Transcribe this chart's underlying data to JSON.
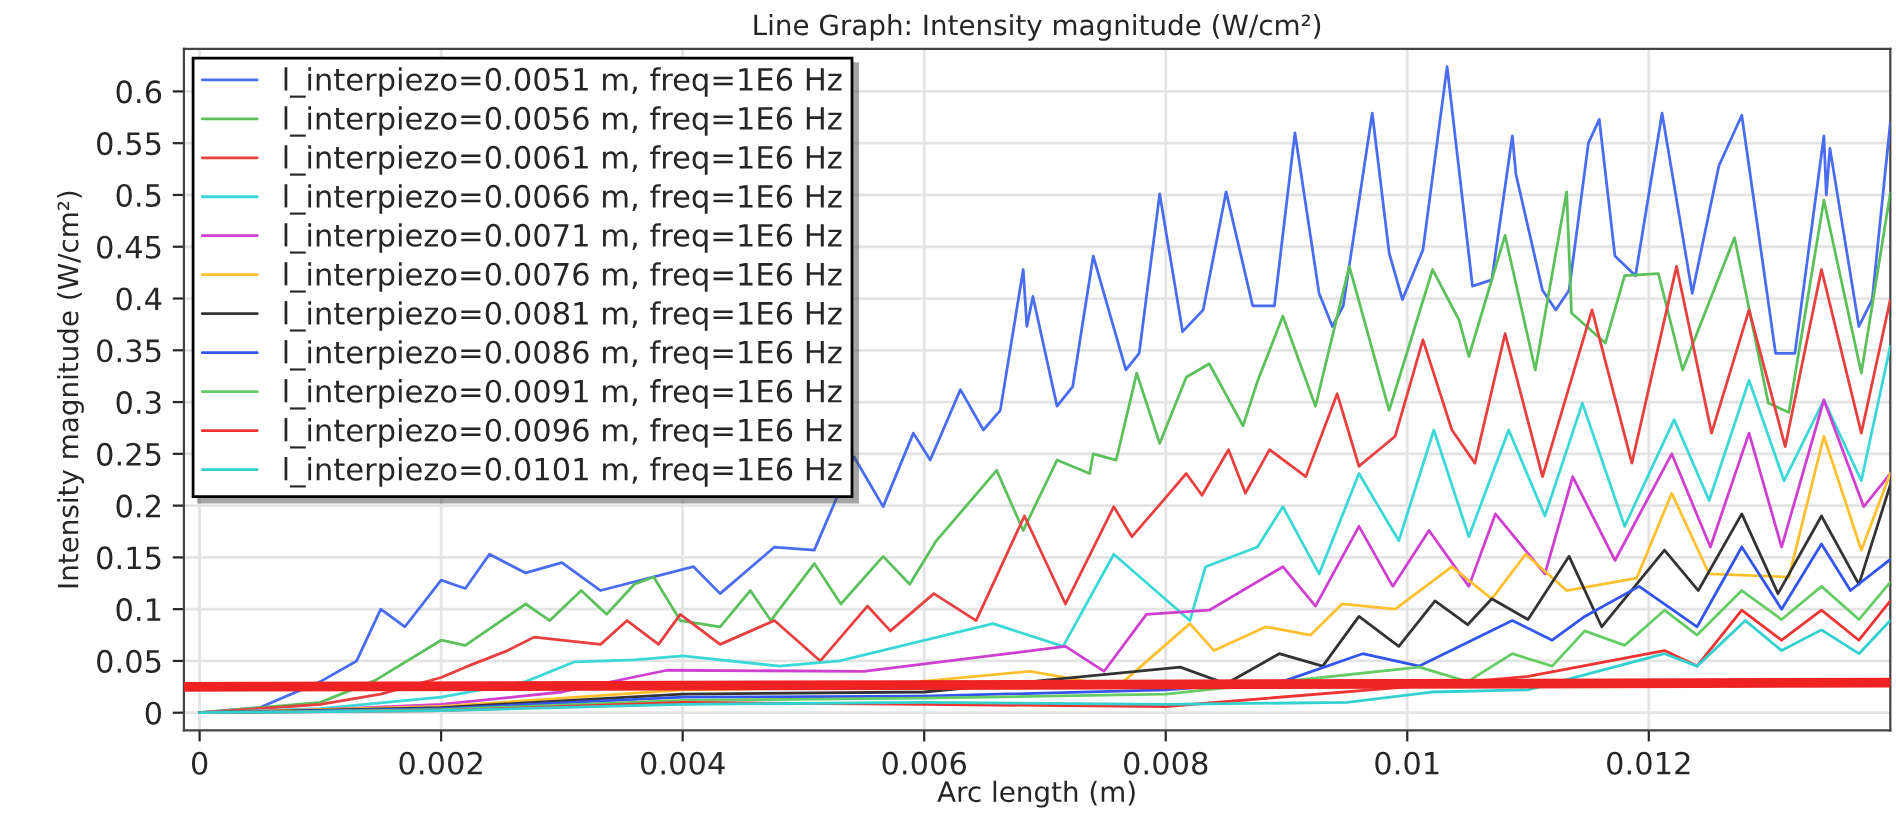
{
  "chart_data": {
    "type": "line",
    "title": "Line Graph: Intensity magnitude (W/cm²)",
    "xlabel": "Arc length (m)",
    "ylabel": "Intensity magnitude (W/cm²)",
    "xlim": [
      -0.00013,
      0.014
    ],
    "ylim": [
      -0.017,
      0.641
    ],
    "xticks": [
      0,
      0.002,
      0.004,
      0.006,
      0.008,
      0.01,
      0.012
    ],
    "yticks": [
      0,
      0.05,
      0.1,
      0.15,
      0.2,
      0.25,
      0.3,
      0.35,
      0.4,
      0.45,
      0.5,
      0.55,
      0.6
    ],
    "grid": true,
    "legend": "top left",
    "line_style": "solid",
    "marker": "none",
    "series": [
      {
        "name": "l_interpiezo=0.0051 m, freq=1E6 Hz",
        "color": "#4a6cf0",
        "x": [
          0,
          0.0005,
          0.001,
          0.0013,
          0.0015,
          0.0017,
          0.002,
          0.0022,
          0.0024,
          0.0027,
          0.003,
          0.00332,
          0.00409,
          0.00431,
          0.00476,
          0.00509,
          0.00542,
          0.00566,
          0.00591,
          0.00605,
          0.0063,
          0.00649,
          0.00663,
          0.00682,
          0.00685,
          0.0069,
          0.0071,
          0.00723,
          0.0074,
          0.00767,
          0.00778,
          0.00795,
          0.00814,
          0.00831,
          0.0085,
          0.00872,
          0.0089,
          0.00907,
          0.00927,
          0.00938,
          0.00947,
          0.00971,
          0.00985,
          0.00996,
          0.01013,
          0.01033,
          0.01054,
          0.0107,
          0.01087,
          0.0109,
          0.01112,
          0.01123,
          0.01134,
          0.0115,
          0.01159,
          0.01172,
          0.01189,
          0.01211,
          0.01236,
          0.01258,
          0.01277,
          0.01305,
          0.01321,
          0.01345,
          0.01347,
          0.0135,
          0.01374,
          0.01385,
          0.014
        ],
        "values": [
          0,
          0.005,
          0.03,
          0.05,
          0.1,
          0.083,
          0.128,
          0.12,
          0.153,
          0.135,
          0.145,
          0.118,
          0.141,
          0.115,
          0.16,
          0.157,
          0.247,
          0.199,
          0.27,
          0.244,
          0.312,
          0.273,
          0.292,
          0.428,
          0.373,
          0.402,
          0.296,
          0.315,
          0.441,
          0.331,
          0.347,
          0.501,
          0.368,
          0.389,
          0.503,
          0.393,
          0.393,
          0.56,
          0.405,
          0.373,
          0.393,
          0.579,
          0.444,
          0.399,
          0.447,
          0.624,
          0.412,
          0.418,
          0.557,
          0.52,
          0.408,
          0.389,
          0.408,
          0.55,
          0.573,
          0.441,
          0.422,
          0.579,
          0.405,
          0.528,
          0.577,
          0.347,
          0.347,
          0.557,
          0.5,
          0.545,
          0.373,
          0.399,
          0.57
        ]
      },
      {
        "name": "l_interpiezo=0.0056 m, freq=1E6 Hz",
        "color": "#5cc15c",
        "x": [
          0,
          0.001,
          0.00145,
          0.002,
          0.0022,
          0.0027,
          0.0029,
          0.00316,
          0.00337,
          0.0036,
          0.00376,
          0.00398,
          0.00431,
          0.00456,
          0.00473,
          0.00509,
          0.00531,
          0.00566,
          0.00588,
          0.0061,
          0.0066,
          0.00682,
          0.0071,
          0.00737,
          0.0074,
          0.00759,
          0.00776,
          0.00795,
          0.00817,
          0.00836,
          0.00864,
          0.00876,
          0.00897,
          0.00924,
          0.00952,
          0.00985,
          0.01021,
          0.01043,
          0.01051,
          0.01081,
          0.01106,
          0.01132,
          0.01136,
          0.01164,
          0.0118,
          0.01208,
          0.01228,
          0.01271,
          0.01299,
          0.01316,
          0.01345,
          0.01376,
          0.014
        ],
        "values": [
          0,
          0.01,
          0.031,
          0.07,
          0.065,
          0.105,
          0.089,
          0.118,
          0.095,
          0.124,
          0.131,
          0.089,
          0.083,
          0.118,
          0.089,
          0.144,
          0.105,
          0.151,
          0.124,
          0.166,
          0.234,
          0.176,
          0.244,
          0.231,
          0.25,
          0.244,
          0.328,
          0.26,
          0.324,
          0.337,
          0.277,
          0.32,
          0.383,
          0.296,
          0.431,
          0.292,
          0.428,
          0.379,
          0.344,
          0.461,
          0.331,
          0.503,
          0.386,
          0.357,
          0.422,
          0.424,
          0.331,
          0.459,
          0.299,
          0.29,
          0.495,
          0.328,
          0.502
        ]
      },
      {
        "name": "l_interpiezo=0.0061 m, freq=1E6 Hz",
        "color": "#e84040",
        "x": [
          0,
          0.001,
          0.0015,
          0.002,
          0.0022,
          0.00255,
          0.00277,
          0.00332,
          0.00354,
          0.0038,
          0.00398,
          0.00431,
          0.00476,
          0.00514,
          0.00553,
          0.00572,
          0.00608,
          0.00643,
          0.00683,
          0.00717,
          0.00757,
          0.00772,
          0.00798,
          0.00817,
          0.0083,
          0.00852,
          0.00866,
          0.00886,
          0.00916,
          0.00942,
          0.0096,
          0.0099,
          0.01013,
          0.01037,
          0.01056,
          0.01081,
          0.01112,
          0.01153,
          0.01186,
          0.01223,
          0.01252,
          0.01283,
          0.01313,
          0.01343,
          0.01376,
          0.014
        ],
        "values": [
          0,
          0.008,
          0.018,
          0.034,
          0.044,
          0.06,
          0.073,
          0.066,
          0.089,
          0.066,
          0.095,
          0.066,
          0.089,
          0.05,
          0.103,
          0.079,
          0.115,
          0.089,
          0.19,
          0.105,
          0.199,
          0.17,
          0.205,
          0.231,
          0.21,
          0.254,
          0.212,
          0.254,
          0.228,
          0.308,
          0.238,
          0.267,
          0.36,
          0.273,
          0.241,
          0.366,
          0.228,
          0.389,
          0.241,
          0.431,
          0.27,
          0.389,
          0.257,
          0.428,
          0.27,
          0.399
        ]
      },
      {
        "name": "l_interpiezo=0.0066 m, freq=1E6 Hz",
        "color": "#3cd8d8",
        "x": [
          0,
          0.001,
          0.002,
          0.0027,
          0.0031,
          0.0036,
          0.004,
          0.0048,
          0.0053,
          0.00657,
          0.00715,
          0.00757,
          0.0082,
          0.00833,
          0.00876,
          0.00897,
          0.00927,
          0.0096,
          0.00993,
          0.01022,
          0.01051,
          0.01084,
          0.01114,
          0.01145,
          0.0118,
          0.01221,
          0.0125,
          0.01283,
          0.01312,
          0.01345,
          0.01376,
          0.014
        ],
        "values": [
          0,
          0.004,
          0.015,
          0.03,
          0.049,
          0.051,
          0.055,
          0.045,
          0.05,
          0.086,
          0.064,
          0.153,
          0.089,
          0.141,
          0.16,
          0.199,
          0.134,
          0.231,
          0.166,
          0.273,
          0.17,
          0.273,
          0.19,
          0.299,
          0.18,
          0.283,
          0.205,
          0.321,
          0.224,
          0.302,
          0.224,
          0.354
        ]
      },
      {
        "name": "l_interpiezo=0.0071 m, freq=1E6 Hz",
        "color": "#d040d0",
        "x": [
          0,
          0.001,
          0.002,
          0.003,
          0.00387,
          0.0055,
          0.00717,
          0.00749,
          0.00784,
          0.00836,
          0.00897,
          0.00924,
          0.0096,
          0.00988,
          0.01018,
          0.01051,
          0.01073,
          0.01114,
          0.01137,
          0.01172,
          0.01219,
          0.01251,
          0.01283,
          0.0131,
          0.01345,
          0.01378,
          0.014
        ],
        "values": [
          0,
          0.003,
          0.008,
          0.02,
          0.041,
          0.04,
          0.064,
          0.04,
          0.095,
          0.099,
          0.141,
          0.103,
          0.18,
          0.122,
          0.176,
          0.122,
          0.192,
          0.134,
          0.228,
          0.147,
          0.25,
          0.16,
          0.27,
          0.16,
          0.302,
          0.199,
          0.231
        ]
      },
      {
        "name": "l_interpiezo=0.0076 m, freq=1E6 Hz",
        "color": "#ffc030",
        "x": [
          0,
          0.002,
          0.004,
          0.0055,
          0.00688,
          0.0076,
          0.0082,
          0.0084,
          0.00883,
          0.0092,
          0.00946,
          0.0099,
          0.01037,
          0.0107,
          0.01098,
          0.01132,
          0.0119,
          0.01219,
          0.0125,
          0.01316,
          0.01345,
          0.01376,
          0.014
        ],
        "values": [
          0,
          0.006,
          0.022,
          0.025,
          0.04,
          0.025,
          0.086,
          0.06,
          0.083,
          0.075,
          0.105,
          0.1,
          0.141,
          0.11,
          0.153,
          0.118,
          0.13,
          0.212,
          0.134,
          0.131,
          0.267,
          0.157,
          0.231
        ]
      },
      {
        "name": "l_interpiezo=0.0081 m, freq=1E6 Hz",
        "color": "#333333",
        "x": [
          0,
          0.002,
          0.004,
          0.006,
          0.0075,
          0.00812,
          0.0085,
          0.00894,
          0.0093,
          0.0096,
          0.00993,
          0.01023,
          0.0105,
          0.0107,
          0.011,
          0.01134,
          0.01161,
          0.01213,
          0.01241,
          0.01277,
          0.01307,
          0.01343,
          0.01374,
          0.014
        ],
        "values": [
          0,
          0.005,
          0.018,
          0.02,
          null,
          0.044,
          0.028,
          0.057,
          0.045,
          0.093,
          0.064,
          0.108,
          0.085,
          0.11,
          0.09,
          0.151,
          0.083,
          0.157,
          0.118,
          0.192,
          0.115,
          0.19,
          0.124,
          0.22
        ]
      },
      {
        "name": "l_interpiezo=0.0086 m, freq=1E6 Hz",
        "color": "#3355ee",
        "x": [
          0,
          0.002,
          0.004,
          0.006,
          0.008,
          0.00899,
          0.00963,
          0.0101,
          0.01087,
          0.0112,
          0.01147,
          0.01192,
          0.0124,
          0.01277,
          0.0131,
          0.01343,
          0.01367,
          0.014
        ],
        "values": [
          0,
          0.004,
          0.015,
          0.016,
          0.022,
          0.031,
          0.057,
          0.045,
          0.089,
          0.07,
          0.093,
          0.122,
          0.083,
          0.16,
          0.1,
          0.163,
          0.118,
          0.148
        ]
      },
      {
        "name": "l_interpiezo=0.0091 m, freq=1E6 Hz",
        "color": "#66cc66",
        "x": [
          0,
          0.002,
          0.004,
          0.006,
          0.008,
          0.009,
          0.0101,
          0.0105,
          0.01087,
          0.0112,
          0.01147,
          0.0118,
          0.01213,
          0.0124,
          0.01277,
          0.0131,
          0.01343,
          0.01374,
          0.014
        ],
        "values": [
          0,
          0.003,
          0.012,
          0.014,
          0.018,
          null,
          0.044,
          0.03,
          0.057,
          0.045,
          0.079,
          0.065,
          0.099,
          0.075,
          0.118,
          0.09,
          0.122,
          0.09,
          0.126
        ]
      },
      {
        "name": "l_interpiezo=0.0096 m, freq=1E6 Hz",
        "color": "#ee3333",
        "x": [
          0,
          0.002,
          0.004,
          0.006,
          0.008,
          0.01,
          0.011,
          0.01213,
          0.0124,
          0.01277,
          0.0131,
          0.01343,
          0.01374,
          0.014
        ],
        "values": [
          0,
          0.002,
          0.01,
          0.008,
          0.006,
          0.025,
          0.035,
          0.06,
          0.045,
          0.099,
          0.07,
          0.099,
          0.07,
          0.108
        ]
      },
      {
        "name": "l_interpiezo=0.0101 m, freq=1E6 Hz",
        "color": "#33d0d0",
        "x": [
          0,
          0.002,
          0.004,
          0.006,
          0.008,
          0.0095,
          0.0102,
          0.011,
          0.01213,
          0.0124,
          0.0128,
          0.0131,
          0.01343,
          0.01374,
          0.014
        ],
        "values": [
          0,
          0.002,
          0.008,
          0.01,
          0.008,
          0.01,
          0.02,
          0.022,
          0.057,
          0.045,
          0.089,
          0.06,
          0.08,
          0.057,
          0.089
        ]
      },
      {
        "color": "#ee2222",
        "x": [
          -0.00013,
          0.014
        ],
        "values": [
          0.025,
          0.029
        ]
      }
    ]
  }
}
